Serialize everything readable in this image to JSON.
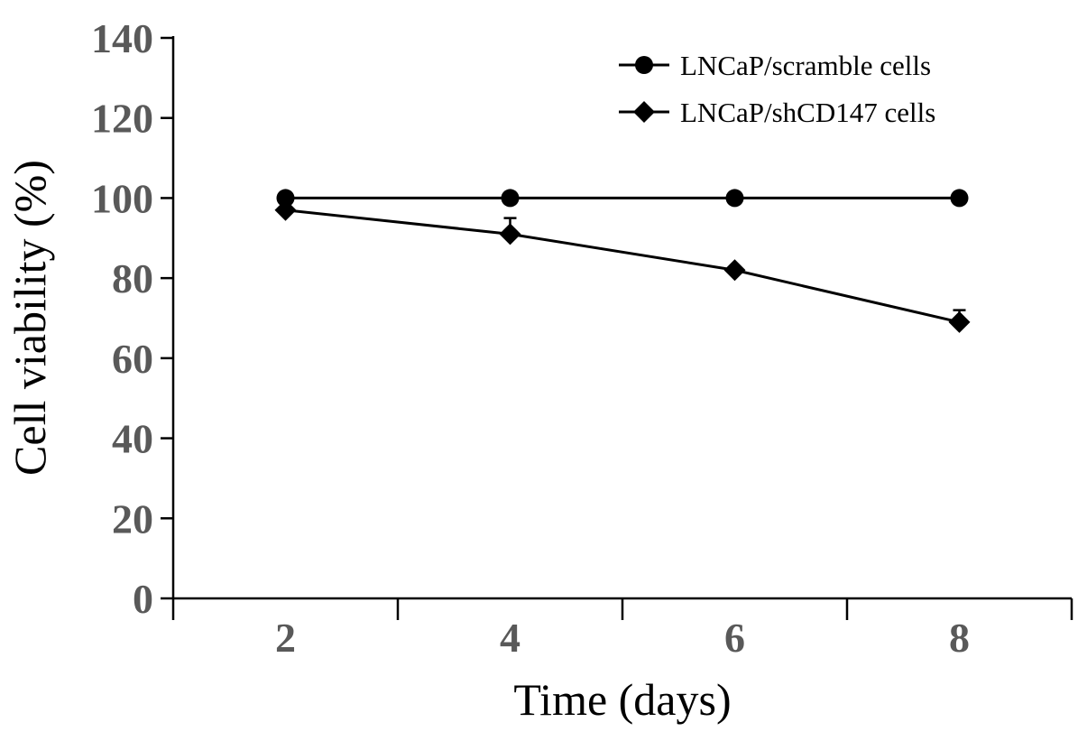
{
  "chart_data": {
    "type": "line",
    "xlabel": "Time (days)",
    "ylabel": "Cell viability (%)",
    "x": [
      2,
      4,
      6,
      8
    ],
    "x_tick_labels": [
      "2",
      "4",
      "6",
      "8"
    ],
    "ylim": [
      0,
      140
    ],
    "y_ticks": [
      0,
      20,
      40,
      60,
      80,
      100,
      120,
      140
    ],
    "y_tick_labels": [
      "0",
      "20",
      "40",
      "60",
      "80",
      "100",
      "120",
      "140"
    ],
    "grid": false,
    "legend_position": "top-right",
    "series": [
      {
        "name": "LNCaP/scramble cells",
        "marker": "circle",
        "color": "#000000",
        "values": [
          100,
          100,
          100,
          100
        ],
        "errors": [
          0,
          0,
          0,
          0
        ]
      },
      {
        "name": "LNCaP/shCD147 cells",
        "marker": "diamond",
        "color": "#000000",
        "values": [
          97,
          91,
          82,
          69
        ],
        "errors": [
          0,
          4,
          0,
          3
        ]
      }
    ]
  }
}
